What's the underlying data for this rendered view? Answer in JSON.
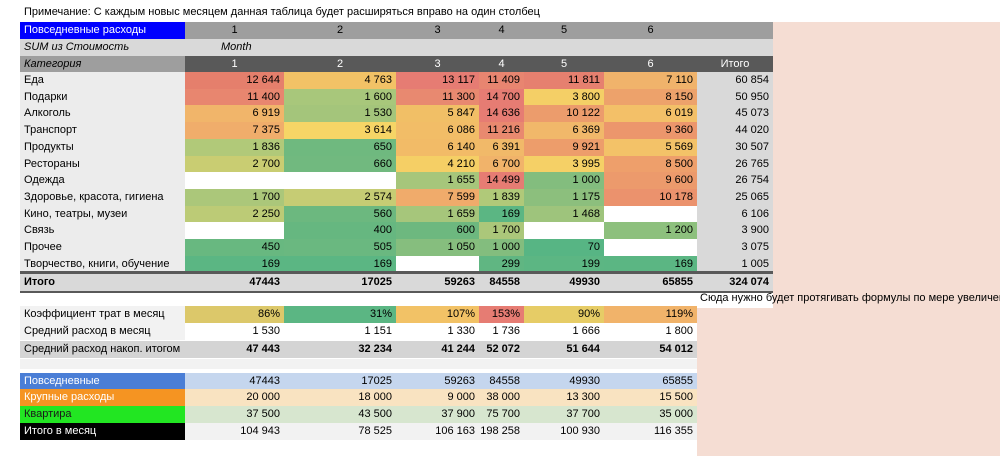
{
  "note": "Примечание: С каждым новыс месяцем данная таблица будет расширяться вправо на один столбец",
  "side_note": "Сюда нужно будет протягивать формулы по мере увеличения",
  "pivot": {
    "title": "Повседневные расходы",
    "month_numbers": [
      "1",
      "2",
      "3",
      "4",
      "5",
      "6"
    ],
    "value_label": "SUM из Стоимость",
    "column_field": "Month",
    "category_header": "Категория",
    "total_header": "Итого",
    "rows": [
      {
        "label": "Еда",
        "cells": [
          {
            "v": "12 644",
            "c": "#e57f6c"
          },
          {
            "v": "4 763",
            "c": "#f2c266"
          },
          {
            "v": "13 117",
            "c": "#e67c73"
          },
          {
            "v": "11 409",
            "c": "#e88570"
          },
          {
            "v": "11 811",
            "c": "#e6806f"
          },
          {
            "v": "7 110",
            "c": "#f0b36b"
          }
        ],
        "total": "60 854"
      },
      {
        "label": "Подарки",
        "cells": [
          {
            "v": "11 400",
            "c": "#e8866f"
          },
          {
            "v": "1 600",
            "c": "#a8c77b"
          },
          {
            "v": "11 300",
            "c": "#e88970"
          },
          {
            "v": "14 700",
            "c": "#e67c73"
          },
          {
            "v": "3 800",
            "c": "#f4cf66"
          },
          {
            "v": "8 150",
            "c": "#eda26b"
          }
        ],
        "total": "50 950"
      },
      {
        "label": "Алкоголь",
        "cells": [
          {
            "v": "6 919",
            "c": "#f1b56a"
          },
          {
            "v": "1 530",
            "c": "#a4c57b"
          },
          {
            "v": "5 847",
            "c": "#f1bf66"
          },
          {
            "v": "14 636",
            "c": "#e67c73"
          },
          {
            "v": "10 122",
            "c": "#ec9c6c"
          },
          {
            "v": "6 019",
            "c": "#f3c068"
          }
        ],
        "total": "45 073"
      },
      {
        "label": "Транспорт",
        "cells": [
          {
            "v": "7 375",
            "c": "#f0ad6b"
          },
          {
            "v": "3 614",
            "c": "#f6d566"
          },
          {
            "v": "6 086",
            "c": "#f2bd67"
          },
          {
            "v": "11 216",
            "c": "#e9896f"
          },
          {
            "v": "6 369",
            "c": "#f1b86a"
          },
          {
            "v": "9 360",
            "c": "#ec966c"
          }
        ],
        "total": "44 020"
      },
      {
        "label": "Продукты",
        "cells": [
          {
            "v": "1 836",
            "c": "#b1c979"
          },
          {
            "v": "650",
            "c": "#6fb97f"
          },
          {
            "v": "6 140",
            "c": "#f2bb67"
          },
          {
            "v": "6 391",
            "c": "#f1b969"
          },
          {
            "v": "9 921",
            "c": "#ed9d6b"
          },
          {
            "v": "5 569",
            "c": "#f3c268"
          }
        ],
        "total": "30 507"
      },
      {
        "label": "Рестораны",
        "cells": [
          {
            "v": "2 700",
            "c": "#c9cd72"
          },
          {
            "v": "660",
            "c": "#71b97f"
          },
          {
            "v": "4 210",
            "c": "#f5cf65"
          },
          {
            "v": "6 700",
            "c": "#f1b36a"
          },
          {
            "v": "3 995",
            "c": "#f5d066"
          },
          {
            "v": "8 500",
            "c": "#ee9f6b"
          }
        ],
        "total": "26 765"
      },
      {
        "label": "Одежда",
        "cells": [
          {
            "v": "",
            "c": "#ffffff"
          },
          {
            "v": "",
            "c": "#ffffff"
          },
          {
            "v": "1 655",
            "c": "#a6c67b"
          },
          {
            "v": "14 499",
            "c": "#e67c73"
          },
          {
            "v": "1 000",
            "c": "#83bd7e"
          },
          {
            "v": "9 600",
            "c": "#ec9a6c"
          }
        ],
        "total": "26 754"
      },
      {
        "label": "Здоровье, красота, гигиена",
        "cells": [
          {
            "v": "1 700",
            "c": "#abc77a"
          },
          {
            "v": "2 574",
            "c": "#c6cc74"
          },
          {
            "v": "7 599",
            "c": "#f0ab6b"
          },
          {
            "v": "1 839",
            "c": "#b0c979"
          },
          {
            "v": "1 175",
            "c": "#8cbf7d"
          },
          {
            "v": "10 178",
            "c": "#eb926d"
          }
        ],
        "total": "25 065"
      },
      {
        "label": "Кино, театры, музеи",
        "cells": [
          {
            "v": "2 250",
            "c": "#bccb76"
          },
          {
            "v": "560",
            "c": "#6cb87f"
          },
          {
            "v": "1 659",
            "c": "#a6c67b"
          },
          {
            "v": "169",
            "c": "#5bb683"
          },
          {
            "v": "1 468",
            "c": "#9ec47c"
          },
          {
            "v": "",
            "c": "#ffffff"
          }
        ],
        "total": "6 106"
      },
      {
        "label": "Связь",
        "cells": [
          {
            "v": "",
            "c": "#ffffff"
          },
          {
            "v": "400",
            "c": "#66b780"
          },
          {
            "v": "600",
            "c": "#6db87f"
          },
          {
            "v": "1 700",
            "c": "#abc77a"
          },
          {
            "v": "",
            "c": "#ffffff"
          },
          {
            "v": "1 200",
            "c": "#8dc07d"
          }
        ],
        "total": "3 900"
      },
      {
        "label": "Прочее",
        "cells": [
          {
            "v": "450",
            "c": "#68b880"
          },
          {
            "v": "505",
            "c": "#6ab880"
          },
          {
            "v": "1 050",
            "c": "#86be7e"
          },
          {
            "v": "1 000",
            "c": "#83bd7e"
          },
          {
            "v": "70",
            "c": "#57b584"
          },
          {
            "v": "",
            "c": "#ffffff"
          }
        ],
        "total": "3 075"
      },
      {
        "label": "Творчество, книги, обучение",
        "cells": [
          {
            "v": "169",
            "c": "#5bb683"
          },
          {
            "v": "169",
            "c": "#5bb683"
          },
          {
            "v": "",
            "c": "#ffffff"
          },
          {
            "v": "299",
            "c": "#60b682"
          },
          {
            "v": "199",
            "c": "#5cb683"
          },
          {
            "v": "169",
            "c": "#5bb683"
          }
        ],
        "total": "1 005"
      }
    ],
    "grand_total": {
      "label": "Итого",
      "values": [
        "47443",
        "17025",
        "59263",
        "84558",
        "49930",
        "65855"
      ],
      "total": "324 074"
    }
  },
  "stats": [
    {
      "label": "Коэффициент трат в месяц",
      "values": [
        "86%",
        "31%",
        "107%",
        "153%",
        "90%",
        "119%"
      ],
      "colors": [
        "#dcc86a",
        "#5bb683",
        "#f2c266",
        "#e67c73",
        "#e6cc66",
        "#f1b36a"
      ]
    },
    {
      "label": "Средний расход в месяц",
      "values": [
        "1 530",
        "1 151",
        "1 330",
        "1 736",
        "1 666",
        "1 800"
      ]
    },
    {
      "label": "Средний расход накоп. итогом",
      "values": [
        "47 443",
        "32 234",
        "41 244",
        "52 072",
        "51 644",
        "54 012"
      ]
    }
  ],
  "summary": [
    {
      "label": "Повседневные",
      "values": [
        "47443",
        "17025",
        "59263",
        "84558",
        "49930",
        "65855"
      ],
      "label_bg": "#4a7ed6",
      "label_fg": "#ffffff",
      "row_bg": "#c5d6ee"
    },
    {
      "label": "Крупные расходы",
      "values": [
        "20 000",
        "18 000",
        "9 000",
        "38 000",
        "13 300",
        "15 500"
      ],
      "label_bg": "#f59422",
      "label_fg": "#ffffff",
      "row_bg": "#f9e3c1"
    },
    {
      "label": "Квартира",
      "values": [
        "37 500",
        "43 500",
        "37 900",
        "75 700",
        "37 700",
        "35 000"
      ],
      "label_bg": "#22e622",
      "label_fg": "#1a1a1a",
      "row_bg": "#d7e6cf"
    },
    {
      "label": "Итого в месяц",
      "values": [
        "104 943",
        "78 525",
        "106 163",
        "198 258",
        "100 930",
        "116 355"
      ],
      "label_bg": "#000000",
      "label_fg": "#ffffff",
      "row_bg": "#f2f2f2"
    }
  ],
  "colors": {
    "header_dark": "#595959",
    "header_mid": "#9e9e9e",
    "blue_title": "#0000ff",
    "total_col": "#d9d9d9",
    "peach": "#f5ddd3",
    "grey_row": "#d4d4d4"
  }
}
